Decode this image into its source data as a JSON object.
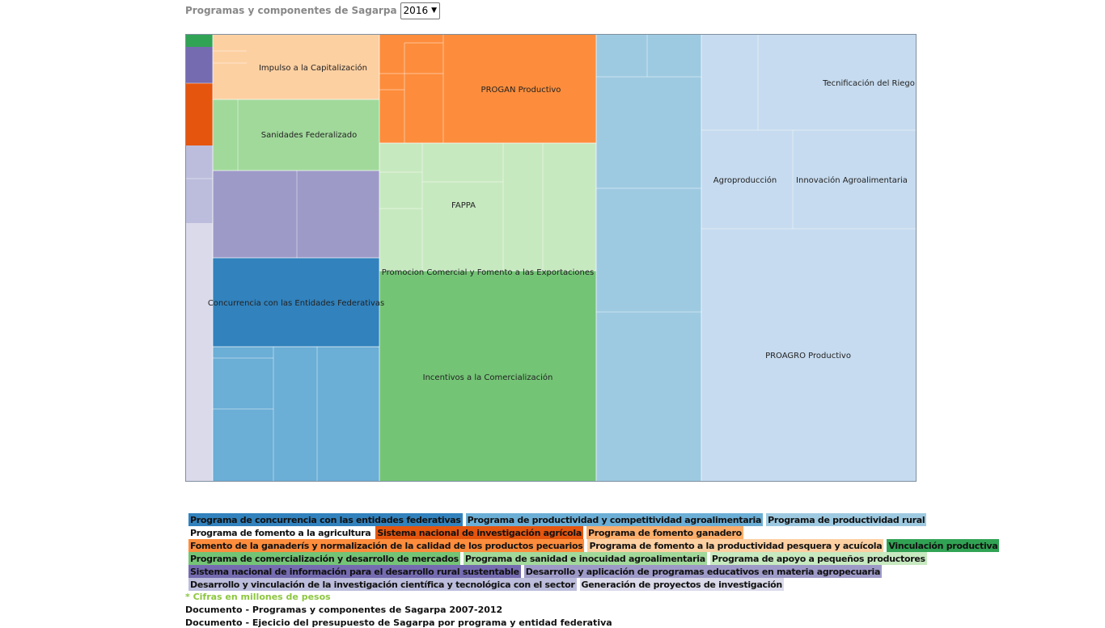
{
  "header": {
    "title": "Programas y componentes de Sagarpa",
    "year_selected": "2016"
  },
  "chart_data": {
    "type": "treemap",
    "labeled_blocks": [
      "Impulso a la Capitalización",
      "Sanidades Federalizado",
      "Concurrencia con las Entidades Federativas",
      "PROGAN Productivo",
      "FAPPA",
      "Promocion Comercial y Fomento a las Exportaciones",
      "Incentivos a la Comercialización",
      "Tecnificación del Riego",
      "Agroproducción",
      "Innovación Agroalimentaria",
      "PROAGRO Productivo"
    ],
    "legend": [
      "Programa de concurrencia con las entidades federativas",
      "Programa de productividad y competitividad agroalimentaria",
      "Programa de productividad rural",
      "Programa de fomento a la agricultura",
      "Sistema nacional de investigación agrícola",
      "Programa de fomento ganadero",
      "Fomento de la ganaderís y normalización de la calidad de los productos pecuarios",
      "Programa de fomento a la productividad pesquera y acuícola",
      "Vinculación productiva",
      "Programa de comercialización y desarrollo de mercados",
      "Programa de sanidad e inocuidad agroalimentaria",
      "Programa de apoyo a pequeños productores",
      "Sistema nacional de información para el desarrollo rural sustentable",
      "Desarrollo y aplicación de programas educativos en materia agropecuaria",
      "Desarrollo y vinculación de la investigación científica y tecnológica con el sector",
      "Generación de proyectos de investigación"
    ]
  },
  "colors": {
    "concurrencia": "#3182bd",
    "productividad_competitividad": "#6baed6",
    "productividad_rural": "#9ecae1",
    "fomento_agricultura": "#c6dbef",
    "investigacion_agricola": "#e6550d",
    "fomento_ganadero": "#fd8d3c",
    "ganaderia_pecuarios": "#fdae6b",
    "pesquera_acuicola": "#fdd0a2",
    "vinculacion": "#31a354",
    "comercializacion": "#74c476",
    "sanidad": "#a1d99b",
    "pequenos_productores": "#c7e9c0",
    "sistema_informacion": "#756bb1",
    "educativos": "#9e9ac8",
    "investigacion_cientifica": "#bcbddc",
    "generacion_proyectos": "#dadaeb"
  },
  "footer": {
    "note": "* Cifras en millones de pesos",
    "doc1": "Documento - Programas y componentes de Sagarpa 2007-2012",
    "doc2": "Documento - Ejecicio del presupuesto de Sagarpa por programa y entidad federativa"
  }
}
